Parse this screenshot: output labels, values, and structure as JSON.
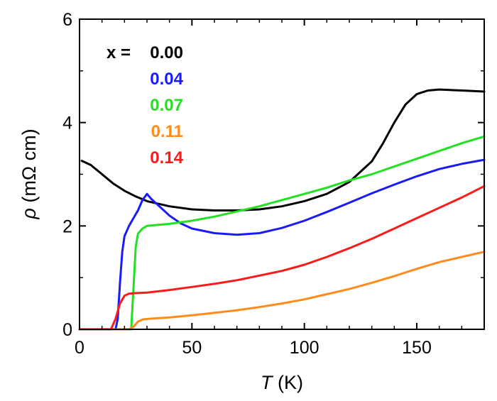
{
  "chart_data": {
    "type": "line",
    "xlabel_symbol": "T",
    "xlabel_unit": " (K)",
    "ylabel_symbol": "ρ",
    "ylabel_unit": " (mΩ cm)",
    "xlim": [
      0,
      180
    ],
    "ylim": [
      0,
      6
    ],
    "x_ticks": [
      0,
      50,
      100,
      150
    ],
    "y_ticks": [
      0,
      2,
      4,
      6
    ],
    "legend_title": "x = ",
    "legend_position": "top-left",
    "grid": false,
    "series": [
      {
        "name": "0.00",
        "color": "#000000",
        "points": [
          [
            1,
            3.26
          ],
          [
            5,
            3.18
          ],
          [
            10,
            3.0
          ],
          [
            15,
            2.82
          ],
          [
            20,
            2.68
          ],
          [
            25,
            2.57
          ],
          [
            30,
            2.48
          ],
          [
            40,
            2.38
          ],
          [
            50,
            2.32
          ],
          [
            60,
            2.3
          ],
          [
            70,
            2.3
          ],
          [
            80,
            2.32
          ],
          [
            90,
            2.38
          ],
          [
            100,
            2.48
          ],
          [
            110,
            2.62
          ],
          [
            120,
            2.85
          ],
          [
            130,
            3.25
          ],
          [
            135,
            3.6
          ],
          [
            140,
            4.0
          ],
          [
            145,
            4.35
          ],
          [
            150,
            4.55
          ],
          [
            155,
            4.62
          ],
          [
            160,
            4.64
          ],
          [
            170,
            4.62
          ],
          [
            180,
            4.6
          ]
        ]
      },
      {
        "name": "0.04",
        "color": "#1a1aff",
        "points": [
          [
            0,
            0
          ],
          [
            16,
            0
          ],
          [
            17,
            0.2
          ],
          [
            18,
            0.9
          ],
          [
            19,
            1.5
          ],
          [
            20,
            1.8
          ],
          [
            22,
            2.0
          ],
          [
            24,
            2.15
          ],
          [
            26,
            2.3
          ],
          [
            28,
            2.5
          ],
          [
            30,
            2.62
          ],
          [
            32,
            2.52
          ],
          [
            35,
            2.4
          ],
          [
            40,
            2.2
          ],
          [
            45,
            2.05
          ],
          [
            50,
            1.95
          ],
          [
            60,
            1.86
          ],
          [
            70,
            1.83
          ],
          [
            80,
            1.86
          ],
          [
            90,
            1.96
          ],
          [
            100,
            2.1
          ],
          [
            110,
            2.27
          ],
          [
            120,
            2.45
          ],
          [
            130,
            2.63
          ],
          [
            140,
            2.8
          ],
          [
            150,
            2.96
          ],
          [
            160,
            3.1
          ],
          [
            170,
            3.2
          ],
          [
            180,
            3.28
          ]
        ]
      },
      {
        "name": "0.07",
        "color": "#22e022",
        "points": [
          [
            0,
            0
          ],
          [
            23,
            0
          ],
          [
            24,
            0.8
          ],
          [
            25,
            1.6
          ],
          [
            26,
            1.85
          ],
          [
            28,
            1.95
          ],
          [
            30,
            2.0
          ],
          [
            40,
            2.04
          ],
          [
            50,
            2.1
          ],
          [
            60,
            2.18
          ],
          [
            70,
            2.28
          ],
          [
            80,
            2.38
          ],
          [
            90,
            2.5
          ],
          [
            100,
            2.62
          ],
          [
            110,
            2.74
          ],
          [
            120,
            2.88
          ],
          [
            130,
            3.0
          ],
          [
            140,
            3.15
          ],
          [
            150,
            3.3
          ],
          [
            160,
            3.45
          ],
          [
            170,
            3.6
          ],
          [
            180,
            3.73
          ]
        ]
      },
      {
        "name": "0.11",
        "color": "#ff8c1a",
        "points": [
          [
            0,
            0
          ],
          [
            22,
            0
          ],
          [
            24,
            0.05
          ],
          [
            26,
            0.15
          ],
          [
            28,
            0.19
          ],
          [
            30,
            0.2
          ],
          [
            40,
            0.23
          ],
          [
            50,
            0.27
          ],
          [
            60,
            0.32
          ],
          [
            70,
            0.37
          ],
          [
            80,
            0.43
          ],
          [
            90,
            0.5
          ],
          [
            100,
            0.58
          ],
          [
            110,
            0.68
          ],
          [
            120,
            0.78
          ],
          [
            130,
            0.9
          ],
          [
            140,
            1.03
          ],
          [
            150,
            1.17
          ],
          [
            160,
            1.3
          ],
          [
            170,
            1.4
          ],
          [
            180,
            1.5
          ]
        ]
      },
      {
        "name": "0.14",
        "color": "#ff1a1a",
        "points": [
          [
            0,
            0
          ],
          [
            14,
            0
          ],
          [
            16,
            0.2
          ],
          [
            18,
            0.5
          ],
          [
            20,
            0.65
          ],
          [
            22,
            0.69
          ],
          [
            25,
            0.7
          ],
          [
            30,
            0.71
          ],
          [
            40,
            0.76
          ],
          [
            50,
            0.82
          ],
          [
            60,
            0.88
          ],
          [
            70,
            0.95
          ],
          [
            80,
            1.04
          ],
          [
            90,
            1.13
          ],
          [
            100,
            1.25
          ],
          [
            110,
            1.4
          ],
          [
            120,
            1.57
          ],
          [
            130,
            1.75
          ],
          [
            140,
            1.95
          ],
          [
            150,
            2.15
          ],
          [
            160,
            2.35
          ],
          [
            170,
            2.55
          ],
          [
            180,
            2.77
          ]
        ]
      }
    ]
  }
}
